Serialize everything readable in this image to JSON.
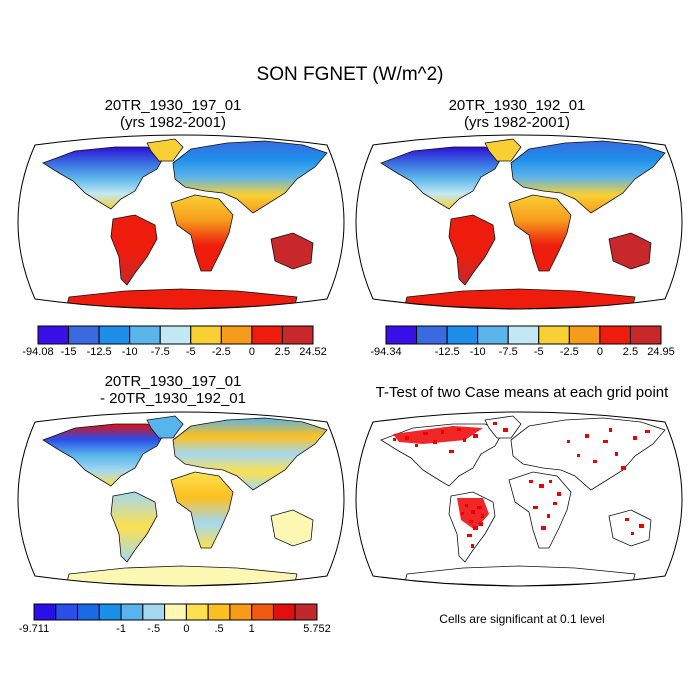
{
  "title": "SON FGNET (W/m^2)",
  "panels": [
    {
      "title_line1": "20TR_1930_197_01",
      "title_line2": "(yrs 1982-2001)"
    },
    {
      "title_line1": "20TR_1930_192_01",
      "title_line2": "(yrs 1982-2001)"
    },
    {
      "title_line1": "20TR_1930_197_01",
      "title_line2": "- 20TR_1930_192_01"
    },
    {
      "title_line1": "T-Test of two Case means at each grid point",
      "title_line2": ""
    }
  ],
  "colorbars": [
    {
      "colors": [
        "#3a10e8",
        "#3a6ae0",
        "#1e8eea",
        "#5bb4ea",
        "#c2e8f4",
        "#f9d034",
        "#f69c1c",
        "#ee1c0c",
        "#c8282a"
      ],
      "labels": [
        {
          "text": "-94.08",
          "pos": 0
        },
        {
          "text": "-15",
          "pos": 1
        },
        {
          "text": "-12.5",
          "pos": 2
        },
        {
          "text": "-10",
          "pos": 3
        },
        {
          "text": "-7.5",
          "pos": 4
        },
        {
          "text": "-5",
          "pos": 5
        },
        {
          "text": "-2.5",
          "pos": 6
        },
        {
          "text": "0",
          "pos": 7
        },
        {
          "text": "2.5",
          "pos": 8
        },
        {
          "text": "24.52",
          "pos": 9
        }
      ]
    },
    {
      "colors": [
        "#3a10e8",
        "#3a6ae0",
        "#1e8eea",
        "#5bb4ea",
        "#c2e8f4",
        "#f9d034",
        "#f69c1c",
        "#ee1c0c",
        "#c8282a"
      ],
      "labels": [
        {
          "text": "-94.34",
          "pos": 0
        },
        {
          "text": "-12.5",
          "pos": 2
        },
        {
          "text": "-10",
          "pos": 3
        },
        {
          "text": "-7.5",
          "pos": 4
        },
        {
          "text": "-5",
          "pos": 5
        },
        {
          "text": "-2.5",
          "pos": 6
        },
        {
          "text": "0",
          "pos": 7
        },
        {
          "text": "2.5",
          "pos": 8
        },
        {
          "text": "24.95",
          "pos": 9
        }
      ]
    },
    {
      "colors": [
        "#2a10e8",
        "#2a4ee8",
        "#1a6ae8",
        "#1a90ea",
        "#58b4ec",
        "#a4d8f0",
        "#fcf8b4",
        "#fce050",
        "#fcc020",
        "#f89c18",
        "#f05a10",
        "#e01010",
        "#c0282c"
      ],
      "labels": [
        {
          "text": "-9.711",
          "pos": 0
        },
        {
          "text": "-1",
          "pos": 4
        },
        {
          "text": "-.5",
          "pos": 5.5
        },
        {
          "text": "0",
          "pos": 7
        },
        {
          "text": ".5",
          "pos": 8.5
        },
        {
          "text": "1",
          "pos": 10
        },
        {
          "text": "5.752",
          "pos": 13
        }
      ]
    }
  ],
  "significance_note": "Cells are significant at 0.1 level",
  "legend_colors": {
    "significant": "#ee0000",
    "land_outline": "#000000"
  }
}
